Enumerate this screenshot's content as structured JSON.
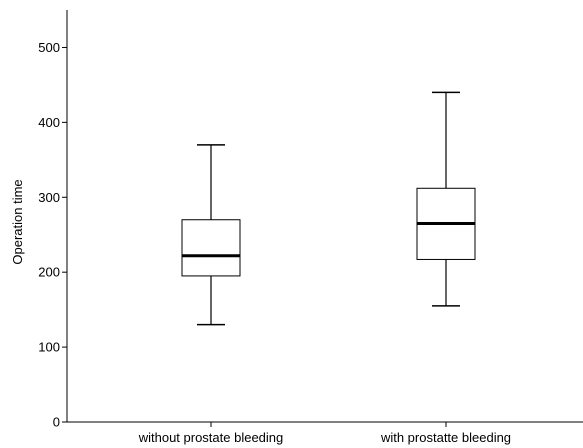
{
  "chart_data": {
    "type": "boxplot",
    "title": "",
    "xlabel": "",
    "ylabel": "Operation time",
    "ylim": [
      0,
      550
    ],
    "yticks": [
      0,
      100,
      200,
      300,
      400,
      500
    ],
    "yticks_labels": [
      "0",
      "100",
      "200",
      "300",
      "400",
      "500"
    ],
    "grid": false,
    "categories": [
      "without prostate bleeding",
      "with prostatte bleeding"
    ],
    "boxes": [
      {
        "category": "without prostate bleeding",
        "min": 130,
        "q1": 195,
        "median": 222,
        "q3": 270,
        "max": 370
      },
      {
        "category": "with prostatte bleeding",
        "min": 155,
        "q1": 217,
        "median": 265,
        "q3": 312,
        "max": 440
      }
    ],
    "colors": {
      "box_fill": "#ffffff",
      "stroke": "#000000"
    }
  }
}
